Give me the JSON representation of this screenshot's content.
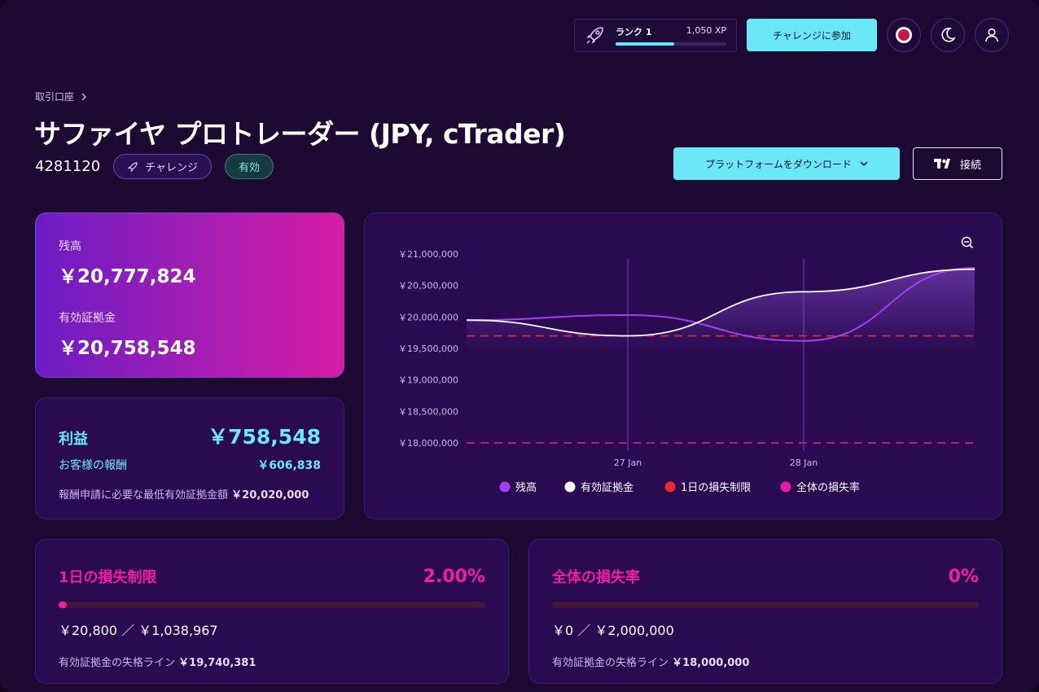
{
  "topbar": {
    "rank_label": "ランク 1",
    "xp": "1,050 XP",
    "rank_progress": 0.53,
    "challenge_button": "チャレンジに参加"
  },
  "header": {
    "breadcrumb": "取引口座",
    "title": "サファイヤ プロトレーダー (JPY, cTrader)",
    "account_number": "4281120",
    "badge_challenge": "チャレンジ",
    "badge_status": "有効",
    "download_button": "プラットフォームをダウンロード",
    "connect_button": "接続"
  },
  "balance": {
    "balance_label": "残高",
    "balance_value": "￥20,777,824",
    "equity_label": "有効証拠金",
    "equity_value": "￥20,758,548"
  },
  "profit": {
    "label": "利益",
    "value": "￥758,548",
    "reward_label": "お客様の報酬",
    "reward_value": "￥606,838",
    "min_equity_label": "報酬申請に必要な最低有効証拠金額",
    "min_equity_value": "￥20,020,000"
  },
  "chart_data": {
    "type": "line",
    "y_ticks": [
      "￥21,000,000",
      "￥20,500,000",
      "￥20,000,000",
      "￥19,500,000",
      "￥19,000,000",
      "￥18,500,000",
      "￥18,000,000"
    ],
    "ylim": [
      18000000,
      21000000
    ],
    "x_ticks": [
      "27 Jan",
      "28 Jan"
    ],
    "series": [
      {
        "name": "残高",
        "color": "#a93ef0",
        "values": [
          19950000,
          20030000,
          19620000,
          20777824
        ]
      },
      {
        "name": "有効証拠金",
        "color": "#ffffff",
        "values": [
          19950000,
          19700000,
          20400000,
          20758548
        ]
      },
      {
        "name": "1日の損失制限",
        "color": "#ee2a2a",
        "values": [
          19700000,
          19700000,
          19700000,
          19700000
        ]
      },
      {
        "name": "全体の損失率",
        "color": "#e21ca6",
        "values": [
          18000000,
          18000000,
          18000000,
          18000000
        ]
      }
    ],
    "zoom_icon": "zoom-out-icon"
  },
  "daily_limit": {
    "title": "1日の損失制限",
    "percent": "2.00%",
    "progress": 0.02,
    "amount": "￥20,800 ／ ￥1,038,967",
    "line_label": "有効証拠金の失格ライン",
    "line_value": "￥19,740,381"
  },
  "total_limit": {
    "title": "全体の損失率",
    "percent": "0%",
    "progress": 0,
    "amount": "￥0 ／ ￥2,000,000",
    "line_label": "有効証拠金の失格ライン",
    "line_value": "￥18,000,000"
  }
}
